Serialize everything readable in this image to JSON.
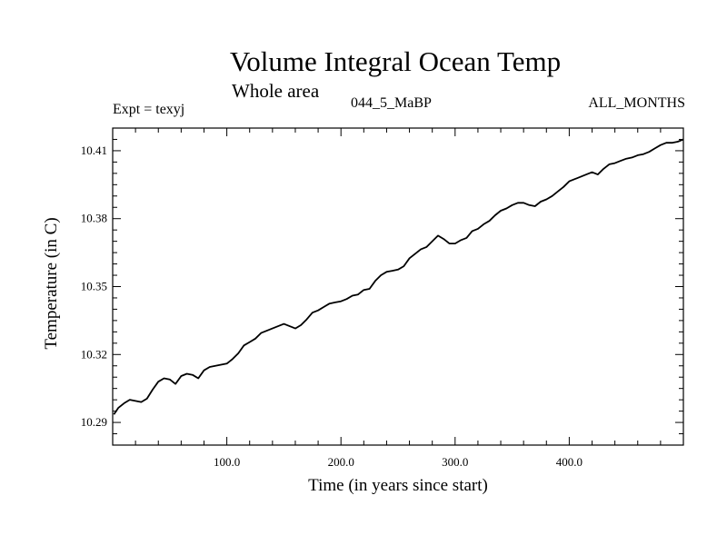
{
  "header": {
    "title": "Volume Integral Ocean Temp",
    "subtitle": "Whole area",
    "expt": "Expt = texyj",
    "center_label": "044_5_MaBP",
    "right_label": "ALL_MONTHS"
  },
  "chart_data": {
    "type": "line",
    "title": "Volume Integral Ocean Temp",
    "subtitle": "Whole area",
    "xlabel": "Time (in years since start)",
    "ylabel": "Temperature (in C)",
    "xlim": [
      0,
      500
    ],
    "ylim": [
      10.28,
      10.42
    ],
    "x_ticks": [
      100,
      200,
      300,
      400
    ],
    "x_tick_labels": [
      "100.0",
      "200.0",
      "300.0",
      "400.0"
    ],
    "y_ticks": [
      10.29,
      10.32,
      10.35,
      10.38,
      10.41
    ],
    "y_tick_labels": [
      "10.29",
      "10.32",
      "10.35",
      "10.38",
      "10.41"
    ],
    "grid": false,
    "series": [
      {
        "x": [
          1,
          5,
          10,
          15,
          20,
          25,
          30,
          35,
          40,
          45,
          50,
          55,
          60,
          65,
          70,
          75,
          80,
          85,
          90,
          95,
          100,
          105,
          110,
          115,
          120,
          125,
          130,
          135,
          140,
          145,
          150,
          155,
          160,
          165,
          170,
          175,
          180,
          185,
          190,
          195,
          200,
          205,
          210,
          215,
          220,
          225,
          230,
          235,
          240,
          245,
          250,
          255,
          260,
          265,
          270,
          275,
          280,
          285,
          290,
          295,
          300,
          305,
          310,
          315,
          320,
          325,
          330,
          335,
          340,
          345,
          350,
          355,
          360,
          365,
          370,
          375,
          380,
          385,
          390,
          395,
          400,
          405,
          410,
          415,
          420,
          425,
          430,
          435,
          440,
          445,
          450,
          455,
          460,
          465,
          470,
          475,
          480,
          485,
          490,
          495,
          500
        ],
        "values": [
          10.2935,
          10.2965,
          10.2985,
          10.3,
          10.2995,
          10.299,
          10.3005,
          10.3045,
          10.308,
          10.3095,
          10.309,
          10.307,
          10.3105,
          10.3115,
          10.311,
          10.3095,
          10.313,
          10.3145,
          10.315,
          10.3155,
          10.316,
          10.318,
          10.3205,
          10.324,
          10.3255,
          10.327,
          10.3295,
          10.3305,
          10.3315,
          10.3325,
          10.3335,
          10.3325,
          10.3315,
          10.333,
          10.3355,
          10.3385,
          10.3395,
          10.341,
          10.3425,
          10.343,
          10.3435,
          10.3445,
          10.346,
          10.3465,
          10.3485,
          10.349,
          10.3525,
          10.355,
          10.3565,
          10.357,
          10.3575,
          10.359,
          10.3625,
          10.3645,
          10.3665,
          10.3675,
          10.37,
          10.3725,
          10.371,
          10.369,
          10.369,
          10.3705,
          10.3715,
          10.3745,
          10.3755,
          10.3775,
          10.379,
          10.3815,
          10.3835,
          10.3845,
          10.386,
          10.387,
          10.387,
          10.386,
          10.3855,
          10.3875,
          10.3885,
          10.39,
          10.392,
          10.394,
          10.3965,
          10.3975,
          10.3985,
          10.3995,
          10.4005,
          10.3995,
          10.402,
          10.404,
          10.4045,
          10.4055,
          10.4065,
          10.407,
          10.408,
          10.4085,
          10.4095,
          10.411,
          10.4125,
          10.4135,
          10.4135,
          10.414,
          10.415
        ]
      }
    ]
  }
}
